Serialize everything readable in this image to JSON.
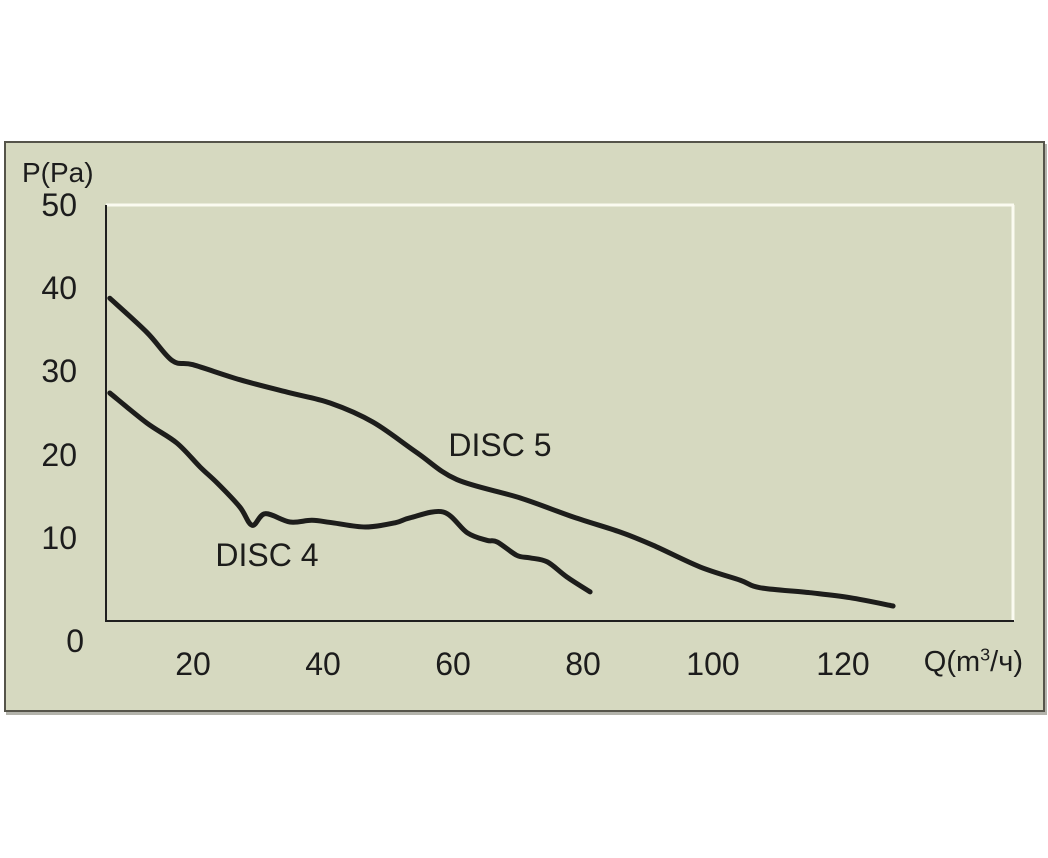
{
  "panel": {
    "background": "#d6d9c0",
    "border_color": "#55544a"
  },
  "chart_data": {
    "type": "line",
    "title": "",
    "ylabel": "P(Pa)",
    "xlabel": "Q(m³/ч)",
    "xlabel_parts": {
      "pre": "Q(m",
      "sup": "3",
      "post": "/ч)"
    },
    "x_ticks": [
      20,
      40,
      60,
      80,
      100,
      120
    ],
    "y_ticks": [
      50,
      40,
      30,
      20,
      10,
      0
    ],
    "xlim": [
      6.6,
      132.2
    ],
    "ylim": [
      0,
      50
    ],
    "grid": false,
    "legend_position": "inline-labels",
    "colors": {
      "line": "#1d1d1b",
      "axis_dark": "#1f1f1f",
      "plot_border_light": "#fbfbf0",
      "text": "#1c1c1c"
    },
    "series": [
      {
        "name": "DISC 5",
        "points": [
          [
            7.2,
            38.8
          ],
          [
            12.9,
            34.7
          ],
          [
            16.8,
            31.3
          ],
          [
            20.0,
            30.8
          ],
          [
            27.2,
            29.0
          ],
          [
            34.5,
            27.5
          ],
          [
            41.1,
            26.2
          ],
          [
            47.7,
            23.9
          ],
          [
            54.5,
            20.2
          ],
          [
            60.6,
            17.0
          ],
          [
            70.3,
            14.8
          ],
          [
            78.5,
            12.5
          ],
          [
            85.7,
            10.7
          ],
          [
            90.8,
            9.1
          ],
          [
            98.0,
            6.5
          ],
          [
            104.2,
            4.9
          ],
          [
            107.2,
            4.0
          ],
          [
            114.9,
            3.4
          ],
          [
            121.1,
            2.8
          ],
          [
            127.7,
            1.8
          ]
        ]
      },
      {
        "name": "DISC 4",
        "points": [
          [
            7.2,
            27.4
          ],
          [
            12.9,
            23.8
          ],
          [
            17.5,
            21.4
          ],
          [
            21.1,
            18.5
          ],
          [
            23.7,
            16.6
          ],
          [
            27.2,
            13.7
          ],
          [
            29.1,
            11.5
          ],
          [
            31.1,
            12.9
          ],
          [
            34.9,
            11.9
          ],
          [
            38.3,
            12.1
          ],
          [
            41.5,
            11.8
          ],
          [
            46.5,
            11.3
          ],
          [
            51.1,
            11.8
          ],
          [
            53.4,
            12.4
          ],
          [
            58.5,
            13.1
          ],
          [
            62.2,
            10.6
          ],
          [
            65.2,
            9.7
          ],
          [
            66.8,
            9.5
          ],
          [
            69.8,
            7.9
          ],
          [
            71.8,
            7.6
          ],
          [
            74.5,
            7.1
          ],
          [
            77.5,
            5.3
          ],
          [
            81.1,
            3.5
          ]
        ]
      }
    ]
  }
}
